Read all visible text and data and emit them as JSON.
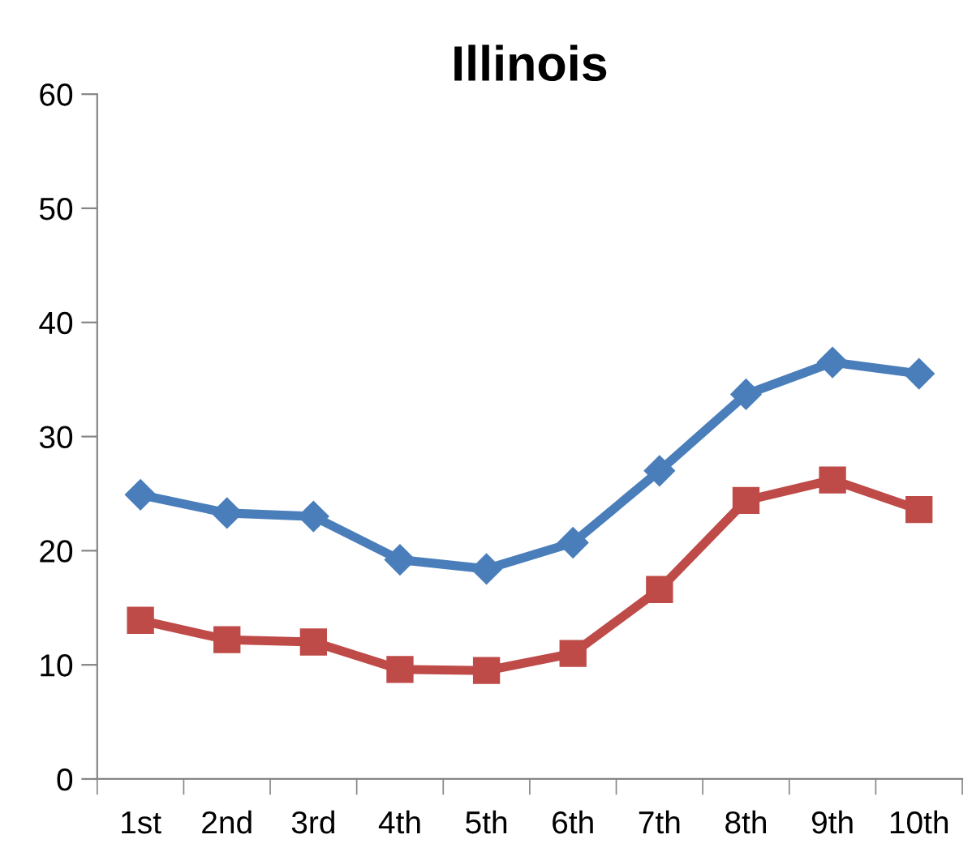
{
  "chart_data": {
    "type": "line",
    "title": "Illinois",
    "categories": [
      "1st",
      "2nd",
      "3rd",
      "4th",
      "5th",
      "6th",
      "7th",
      "8th",
      "9th",
      "10th"
    ],
    "series": [
      {
        "color": "#4a7ebb",
        "marker": "diamond",
        "values": [
          24.9,
          23.3,
          23.0,
          19.2,
          18.4,
          20.7,
          27.0,
          33.7,
          36.5,
          35.5
        ]
      },
      {
        "color": "#be4b48",
        "marker": "square",
        "values": [
          13.9,
          12.2,
          12.0,
          9.6,
          9.5,
          11.0,
          16.6,
          24.4,
          26.2,
          23.6
        ]
      }
    ],
    "ylim": [
      0,
      60
    ],
    "yticks": [
      0,
      10,
      20,
      30,
      40,
      50,
      60
    ],
    "line_style": "solid"
  }
}
